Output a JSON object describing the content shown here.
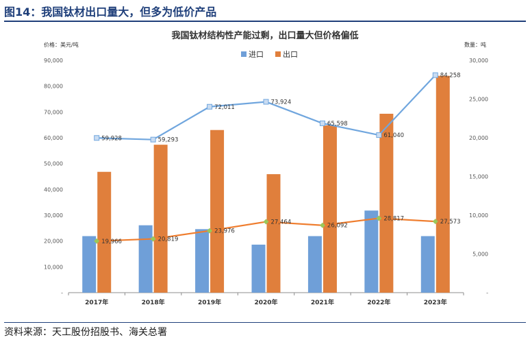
{
  "figure": {
    "title": "图14：我国钛材出口量大，但多为低价产品",
    "source": "资料来源：天工股份招股书、海关总署"
  },
  "colors": {
    "import_bar": "#6f9fd8",
    "export_bar": "#e07f3c",
    "import_price_line": "#70a6de",
    "export_price_line": "#ef7d2e",
    "import_marker": "#c9dcf2",
    "export_marker": "#9bc85a",
    "figure_title": "#1f3f7a"
  },
  "chart_data": {
    "type": "bar",
    "title": "我国钛材结构性产能过剩，出口量大但价格偏低",
    "ylabel_left": "价格：美元/吨",
    "ylabel_right": "数量：吨",
    "categories": [
      "2017年",
      "2018年",
      "2019年",
      "2020年",
      "2021年",
      "2022年",
      "2023年"
    ],
    "y_left_ticks": [
      "-",
      "10,000",
      "20,000",
      "30,000",
      "40,000",
      "50,000",
      "60,000",
      "70,000",
      "80,000",
      "90,000"
    ],
    "y_right_ticks": [
      "-",
      "5,000",
      "10,000",
      "15,000",
      "20,000",
      "25,000",
      "30,000"
    ],
    "ylim_left": [
      0,
      90000
    ],
    "ylim_right": [
      0,
      30000
    ],
    "legend": [
      "进口",
      "出口"
    ],
    "legend_position": "top",
    "grid": false,
    "series": [
      {
        "name": "进口",
        "kind": "bar",
        "axis": "right",
        "values": [
          7300,
          8700,
          8200,
          6200,
          7300,
          10600,
          7300
        ]
      },
      {
        "name": "出口",
        "kind": "bar",
        "axis": "right",
        "values": [
          15600,
          19100,
          21000,
          15300,
          21600,
          23100,
          28000
        ]
      },
      {
        "kind": "line",
        "axis": "left",
        "values": [
          59928,
          59293,
          72011,
          73924,
          65598,
          61040,
          84258
        ],
        "labels": [
          "59,928",
          "59,293",
          "72,011",
          "73,924",
          "65,598",
          "61,040",
          "84,258"
        ]
      },
      {
        "kind": "line",
        "axis": "left",
        "values": [
          19966,
          20819,
          23976,
          27464,
          26092,
          28817,
          27573
        ],
        "labels": [
          "19,966",
          "20,819",
          "23,976",
          "27,464",
          "26,092",
          "28,817",
          "27,573"
        ]
      }
    ]
  }
}
